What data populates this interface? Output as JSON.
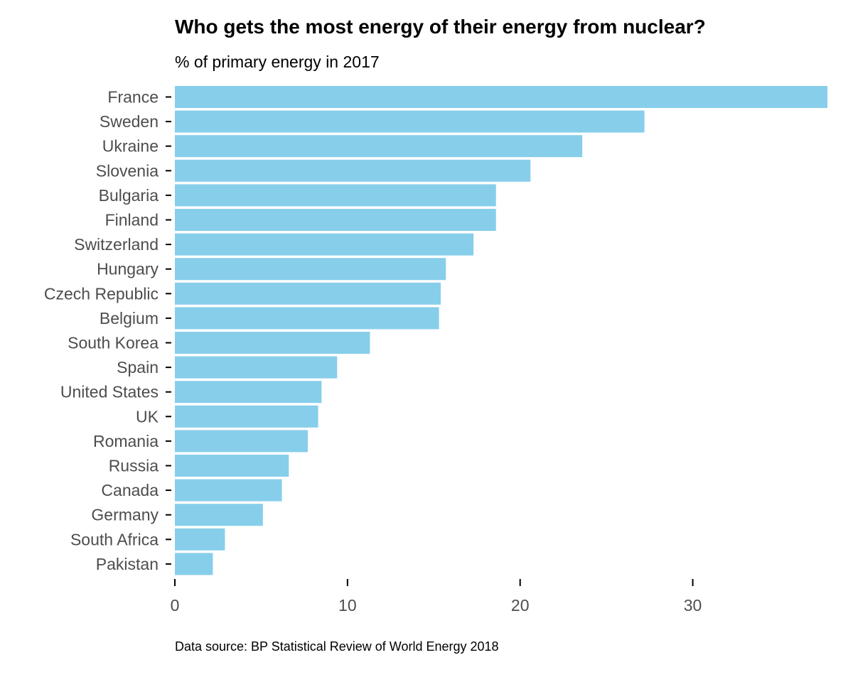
{
  "chart_data": {
    "type": "bar",
    "orientation": "horizontal",
    "title": "Who gets the most energy of their energy from nuclear?",
    "subtitle": "% of primary energy in 2017",
    "caption": "Data source: BP Statistical Review of World Energy 2018",
    "xlabel": "",
    "ylabel": "",
    "xlim": [
      0,
      37.8
    ],
    "xticks": [
      0,
      10,
      20,
      30
    ],
    "grid": false,
    "bar_color": "#87CEEB",
    "categories": [
      "France",
      "Sweden",
      "Ukraine",
      "Slovenia",
      "Bulgaria",
      "Finland",
      "Switzerland",
      "Hungary",
      "Czech Republic",
      "Belgium",
      "South Korea",
      "Spain",
      "United States",
      "UK",
      "Romania",
      "Russia",
      "Canada",
      "Germany",
      "South Africa",
      "Pakistan"
    ],
    "values": [
      37.8,
      27.2,
      23.6,
      20.6,
      18.6,
      18.6,
      17.3,
      15.7,
      15.4,
      15.3,
      11.3,
      9.4,
      8.5,
      8.3,
      7.7,
      6.6,
      6.2,
      5.1,
      2.9,
      2.2
    ]
  }
}
